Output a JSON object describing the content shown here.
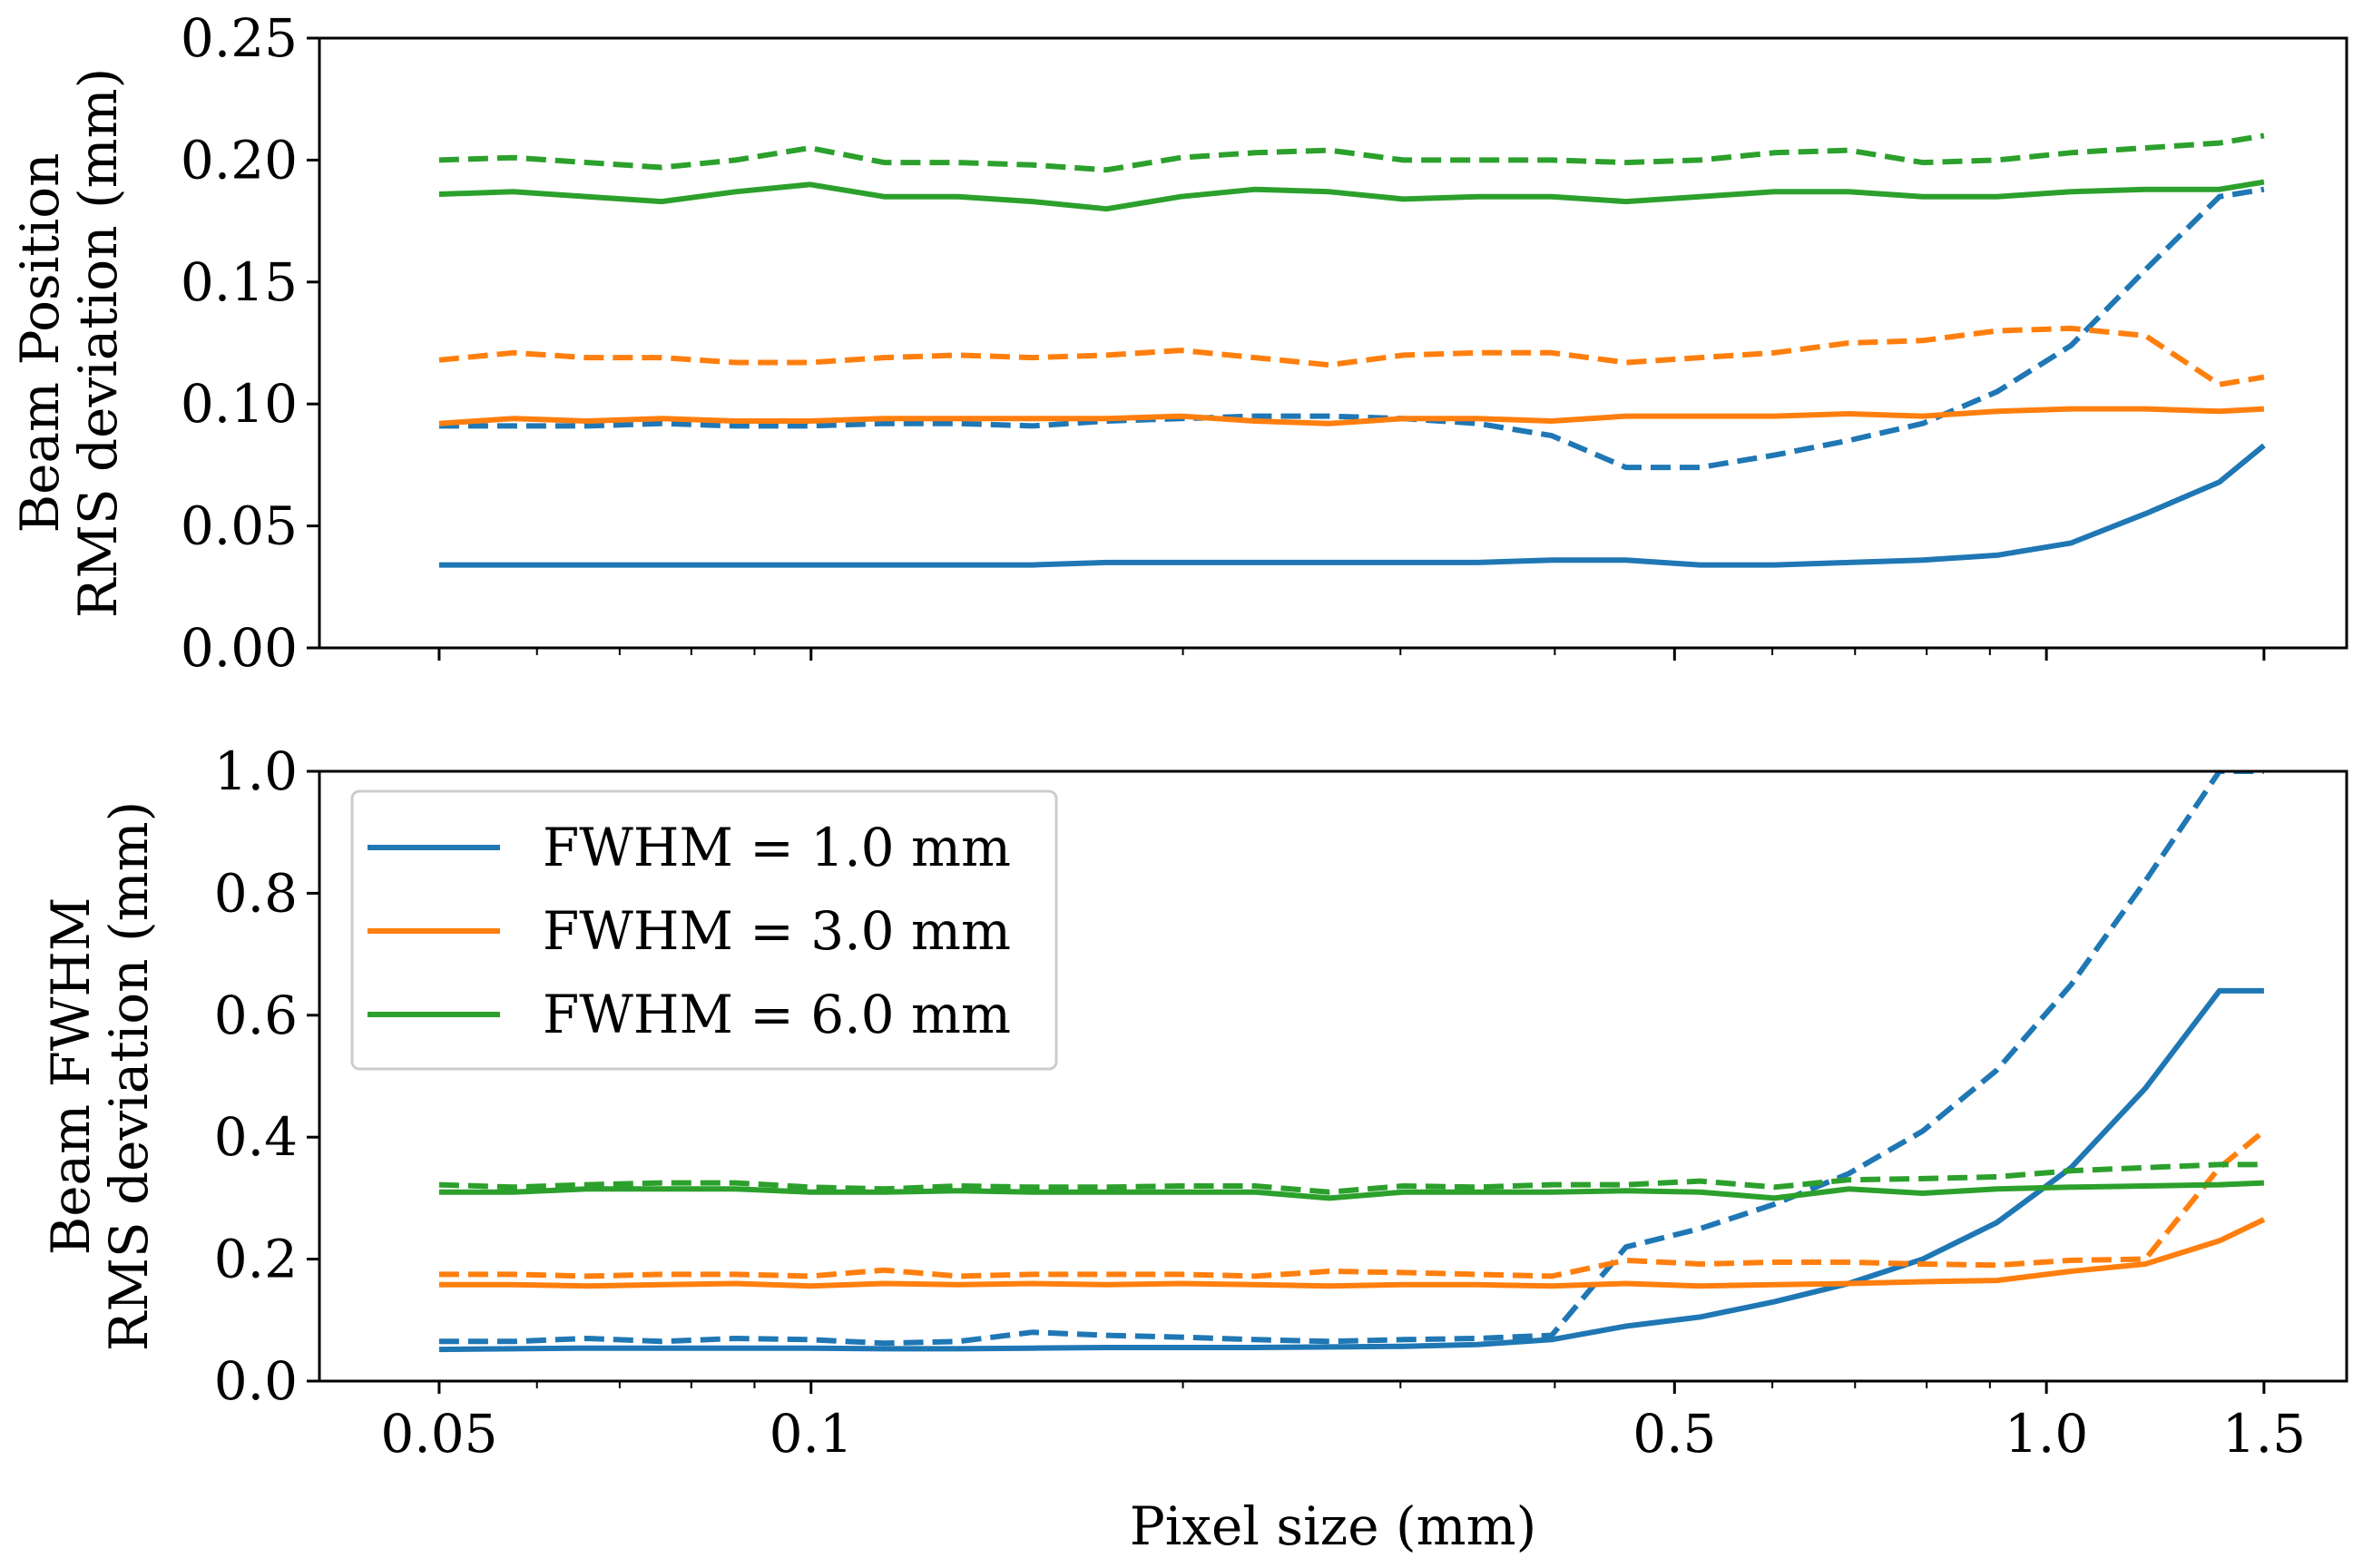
{
  "chart_data": [
    {
      "type": "line",
      "id": "top",
      "title": "",
      "xlabel": "",
      "ylabel_lines": [
        "Beam Position",
        "RMS deviation (mm)"
      ],
      "xscale": "log",
      "xlim": [
        0.04,
        1.75
      ],
      "ylim": [
        0,
        0.25
      ],
      "yticks": [
        0,
        0.05,
        0.1,
        0.15,
        0.2,
        0.25
      ],
      "ytick_labels": [
        "0.00",
        "0.05",
        "0.10",
        "0.15",
        "0.20",
        "0.25"
      ],
      "x": [
        0.05,
        0.0574,
        0.0659,
        0.0757,
        0.0869,
        0.0998,
        0.1146,
        0.1316,
        0.1511,
        0.1735,
        0.1992,
        0.2288,
        0.2627,
        0.3016,
        0.3463,
        0.3977,
        0.4567,
        0.5244,
        0.6022,
        0.6915,
        0.7941,
        0.9118,
        1.047,
        1.2023,
        1.3806,
        1.5
      ],
      "series": [
        {
          "name": "FWHM = 1.0 mm",
          "style": "solid",
          "color": "#1f77b4",
          "values": [
            0.034,
            0.034,
            0.034,
            0.034,
            0.034,
            0.034,
            0.034,
            0.034,
            0.034,
            0.035,
            0.035,
            0.035,
            0.035,
            0.035,
            0.035,
            0.036,
            0.036,
            0.034,
            0.034,
            0.035,
            0.036,
            0.038,
            0.043,
            0.055,
            0.068,
            0.083
          ]
        },
        {
          "name": "FWHM = 1.0 mm",
          "style": "dashed",
          "color": "#1f77b4",
          "values": [
            0.091,
            0.091,
            0.091,
            0.092,
            0.091,
            0.091,
            0.092,
            0.092,
            0.091,
            0.093,
            0.094,
            0.095,
            0.095,
            0.094,
            0.092,
            0.087,
            0.074,
            0.074,
            0.079,
            0.085,
            0.092,
            0.105,
            0.124,
            0.155,
            0.185,
            0.188
          ]
        },
        {
          "name": "FWHM = 3.0 mm",
          "style": "solid",
          "color": "#ff7f0e",
          "values": [
            0.092,
            0.094,
            0.093,
            0.094,
            0.093,
            0.093,
            0.094,
            0.094,
            0.094,
            0.094,
            0.095,
            0.093,
            0.092,
            0.094,
            0.094,
            0.093,
            0.095,
            0.095,
            0.095,
            0.096,
            0.095,
            0.097,
            0.098,
            0.098,
            0.097,
            0.098
          ]
        },
        {
          "name": "FWHM = 3.0 mm",
          "style": "dashed",
          "color": "#ff7f0e",
          "values": [
            0.118,
            0.121,
            0.119,
            0.119,
            0.117,
            0.117,
            0.119,
            0.12,
            0.119,
            0.12,
            0.122,
            0.119,
            0.116,
            0.12,
            0.121,
            0.121,
            0.117,
            0.119,
            0.121,
            0.125,
            0.126,
            0.13,
            0.131,
            0.128,
            0.108,
            0.111
          ]
        },
        {
          "name": "FWHM = 6.0 mm",
          "style": "solid",
          "color": "#2ca02c",
          "values": [
            0.186,
            0.187,
            0.185,
            0.183,
            0.187,
            0.19,
            0.185,
            0.185,
            0.183,
            0.18,
            0.185,
            0.188,
            0.187,
            0.184,
            0.185,
            0.185,
            0.183,
            0.185,
            0.187,
            0.187,
            0.185,
            0.185,
            0.187,
            0.188,
            0.188,
            0.191
          ]
        },
        {
          "name": "FWHM = 6.0 mm",
          "style": "dashed",
          "color": "#2ca02c",
          "values": [
            0.2,
            0.201,
            0.199,
            0.197,
            0.2,
            0.205,
            0.199,
            0.199,
            0.198,
            0.196,
            0.201,
            0.203,
            0.204,
            0.2,
            0.2,
            0.2,
            0.199,
            0.2,
            0.203,
            0.204,
            0.199,
            0.2,
            0.203,
            0.205,
            0.207,
            0.21
          ]
        }
      ]
    },
    {
      "type": "line",
      "id": "bottom",
      "title": "",
      "xlabel": "Pixel size (mm)",
      "ylabel_lines": [
        "Beam FWHM",
        "RMS deviation (mm)"
      ],
      "xscale": "log",
      "xlim": [
        0.04,
        1.75
      ],
      "ylim": [
        0,
        1.0
      ],
      "yticks": [
        0,
        0.2,
        0.4,
        0.6,
        0.8,
        1.0
      ],
      "ytick_labels": [
        "0.0",
        "0.2",
        "0.4",
        "0.6",
        "0.8",
        "1.0"
      ],
      "xticks": [
        0.05,
        0.1,
        0.5,
        1.0,
        1.5
      ],
      "xtick_labels": [
        "0.05",
        "0.1",
        "0.5",
        "1.0",
        "1.5"
      ],
      "x": [
        0.05,
        0.0574,
        0.0659,
        0.0757,
        0.0869,
        0.0998,
        0.1146,
        0.1316,
        0.1511,
        0.1735,
        0.1992,
        0.2288,
        0.2627,
        0.3016,
        0.3463,
        0.3977,
        0.4567,
        0.5244,
        0.6022,
        0.6915,
        0.7941,
        0.9118,
        1.047,
        1.2023,
        1.3806,
        1.5
      ],
      "series": [
        {
          "name": "FWHM = 1.0 mm",
          "style": "solid",
          "color": "#1f77b4",
          "values": [
            0.052,
            0.053,
            0.054,
            0.054,
            0.054,
            0.054,
            0.053,
            0.053,
            0.054,
            0.055,
            0.055,
            0.055,
            0.056,
            0.057,
            0.06,
            0.068,
            0.09,
            0.105,
            0.13,
            0.16,
            0.2,
            0.26,
            0.35,
            0.48,
            0.64,
            0.64
          ]
        },
        {
          "name": "FWHM = 1.0 mm",
          "style": "dashed",
          "color": "#1f77b4",
          "values": [
            0.065,
            0.065,
            0.07,
            0.065,
            0.07,
            0.068,
            0.062,
            0.065,
            0.08,
            0.075,
            0.072,
            0.068,
            0.065,
            0.068,
            0.07,
            0.075,
            0.22,
            0.25,
            0.29,
            0.34,
            0.41,
            0.51,
            0.65,
            0.82,
            1.0,
            1.0
          ]
        },
        {
          "name": "FWHM = 3.0 mm",
          "style": "solid",
          "color": "#ff7f0e",
          "values": [
            0.158,
            0.158,
            0.156,
            0.158,
            0.16,
            0.156,
            0.16,
            0.158,
            0.16,
            0.158,
            0.16,
            0.158,
            0.156,
            0.158,
            0.158,
            0.156,
            0.16,
            0.156,
            0.158,
            0.16,
            0.163,
            0.165,
            0.18,
            0.192,
            0.23,
            0.265
          ]
        },
        {
          "name": "FWHM = 3.0 mm",
          "style": "dashed",
          "color": "#ff7f0e",
          "values": [
            0.175,
            0.175,
            0.172,
            0.175,
            0.175,
            0.172,
            0.182,
            0.172,
            0.175,
            0.175,
            0.175,
            0.172,
            0.18,
            0.178,
            0.175,
            0.172,
            0.198,
            0.192,
            0.195,
            0.195,
            0.192,
            0.19,
            0.198,
            0.2,
            0.35,
            0.41
          ]
        },
        {
          "name": "FWHM = 6.0 mm",
          "style": "solid",
          "color": "#2ca02c",
          "values": [
            0.31,
            0.31,
            0.315,
            0.315,
            0.315,
            0.31,
            0.31,
            0.312,
            0.31,
            0.31,
            0.31,
            0.31,
            0.3,
            0.31,
            0.31,
            0.31,
            0.312,
            0.31,
            0.3,
            0.315,
            0.308,
            0.315,
            0.318,
            0.32,
            0.322,
            0.325
          ]
        },
        {
          "name": "FWHM = 6.0 mm",
          "style": "dashed",
          "color": "#2ca02c",
          "values": [
            0.322,
            0.318,
            0.322,
            0.325,
            0.325,
            0.318,
            0.315,
            0.32,
            0.318,
            0.318,
            0.32,
            0.32,
            0.31,
            0.32,
            0.318,
            0.322,
            0.322,
            0.328,
            0.318,
            0.33,
            0.332,
            0.335,
            0.345,
            0.35,
            0.355,
            0.355
          ]
        }
      ],
      "legend": {
        "placement": "upper-left",
        "entries": [
          {
            "label": "FWHM = 1.0 mm",
            "color": "#1f77b4"
          },
          {
            "label": "FWHM = 3.0 mm",
            "color": "#ff7f0e"
          },
          {
            "label": "FWHM = 6.0 mm",
            "color": "#2ca02c"
          }
        ]
      }
    }
  ]
}
